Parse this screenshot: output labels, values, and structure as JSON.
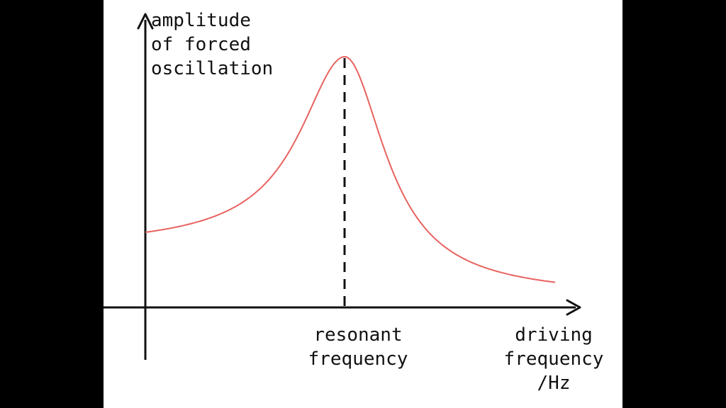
{
  "colors": {
    "background": "#000000",
    "panel": "#ffffff",
    "axis": "#111111",
    "curve": "#e8625f",
    "dashed_line": "#111111"
  },
  "y_axis_label": [
    "amplitude",
    "of forced",
    "oscillation"
  ],
  "resonance_label": [
    "resonant",
    "frequency"
  ],
  "x_axis_label": [
    "driving",
    "frequency",
    "/Hz"
  ],
  "curve": {
    "shape": "resonance peak",
    "peak_marker": "dashed vertical line at resonant frequency"
  }
}
